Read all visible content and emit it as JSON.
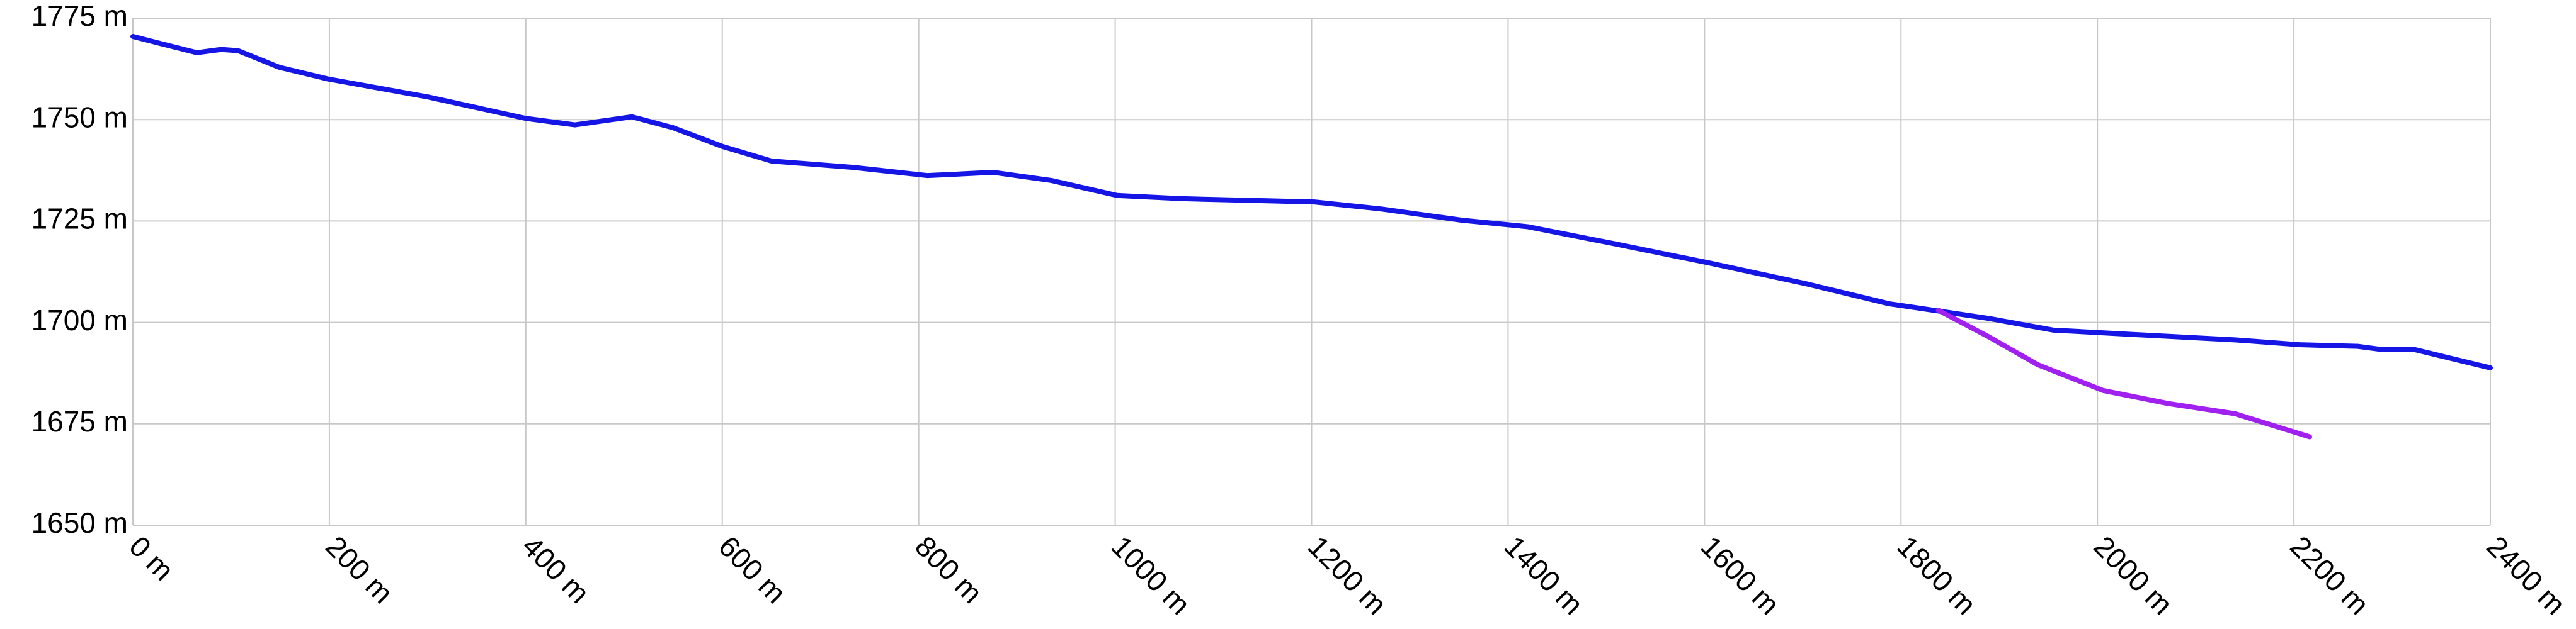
{
  "chart_data": {
    "type": "line",
    "xlim": [
      0,
      2400
    ],
    "ylim": [
      1650,
      1775
    ],
    "xticks": [
      {
        "value": 0,
        "label": "0 m"
      },
      {
        "value": 200,
        "label": "200 m"
      },
      {
        "value": 400,
        "label": "400 m"
      },
      {
        "value": 600,
        "label": "600 m"
      },
      {
        "value": 800,
        "label": "800 m"
      },
      {
        "value": 1000,
        "label": "1000 m"
      },
      {
        "value": 1200,
        "label": "1200 m"
      },
      {
        "value": 1400,
        "label": "1400 m"
      },
      {
        "value": 1600,
        "label": "1600 m"
      },
      {
        "value": 1800,
        "label": "1800 m"
      },
      {
        "value": 2000,
        "label": "2000 m"
      },
      {
        "value": 2200,
        "label": "2200 m"
      },
      {
        "value": 2400,
        "label": "2400 m"
      }
    ],
    "yticks": [
      {
        "value": 1650,
        "label": "1650 m"
      },
      {
        "value": 1675,
        "label": "1675 m"
      },
      {
        "value": 1700,
        "label": "1700 m"
      },
      {
        "value": 1725,
        "label": "1725 m"
      },
      {
        "value": 1750,
        "label": "1750 m"
      },
      {
        "value": 1775,
        "label": "1775 m"
      }
    ],
    "grid": true,
    "series": [
      {
        "color": "#1515e6",
        "x": [
          0,
          65,
          90,
          107,
          149,
          199,
          300,
          400,
          450,
          508,
          550,
          600,
          650,
          734,
          809,
          876,
          935,
          1002,
          1069,
          1203,
          1270,
          1353,
          1420,
          1504,
          1604,
          1704,
          1788,
          1889,
          1955,
          2039,
          2140,
          2206,
          2265,
          2290,
          2323,
          2400
        ],
        "values": [
          1770.5,
          1766.5,
          1767.3,
          1767,
          1762.9,
          1760,
          1755.6,
          1750.3,
          1748.7,
          1750.7,
          1748,
          1743.4,
          1739.8,
          1738.2,
          1736.2,
          1737,
          1735,
          1731.3,
          1730.5,
          1729.7,
          1728,
          1725.2,
          1723.6,
          1719.6,
          1714.7,
          1709.5,
          1704.6,
          1701,
          1698.1,
          1697,
          1695.7,
          1694.5,
          1694.1,
          1693.3,
          1693.3,
          1688.8
        ]
      },
      {
        "color": "#a020f0",
        "x": [
          1838,
          1889,
          1939,
          2006,
          2072,
          2140,
          2216
        ],
        "values": [
          1703,
          1696.5,
          1689.6,
          1683.2,
          1680,
          1677.5,
          1671.8
        ]
      }
    ]
  }
}
